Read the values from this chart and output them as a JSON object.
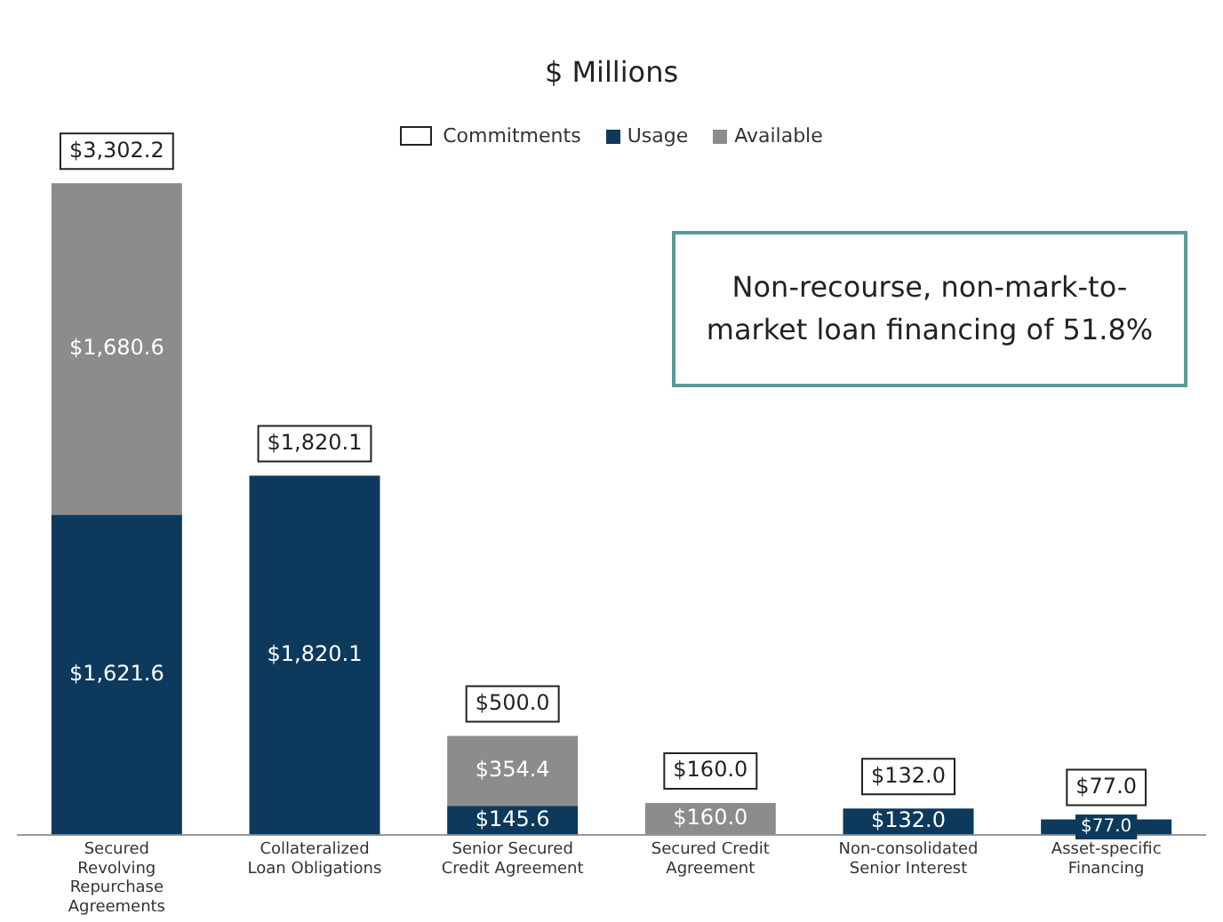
{
  "chart_data": {
    "type": "bar",
    "title": "$ Millions",
    "stacked": true,
    "legend": "top",
    "legend_title": "Commitments",
    "grid": false,
    "tick_labels": "x",
    "categories": [
      "Secured Revolving Repurchase Agreements",
      "Collateralized Loan Obligations",
      "Senior Secured Credit Agreement",
      "Secured Credit Agreement",
      "Non-consolidated Senior Interest",
      "Asset-specific Financing"
    ],
    "series": [
      {
        "name": "Usage",
        "color": "#0d3a5c",
        "values": [
          1621.6,
          1820.1,
          145.6,
          null,
          132.0,
          77.0
        ],
        "value_labels": [
          "$1,621.6",
          "$1,820.1",
          "$145.6",
          null,
          "$132.0",
          "$77.0"
        ]
      },
      {
        "name": "Available",
        "color": "#8c8c8c",
        "values": [
          1680.6,
          null,
          354.4,
          160.0,
          null,
          null
        ],
        "value_labels": [
          "$1,680.6",
          null,
          "$354.4",
          "$160.0",
          null,
          null
        ]
      }
    ],
    "totals": [
      "$3,302.2",
      "$1,820.1",
      "$500.0",
      "$160.0",
      "$132.0",
      "$77.0"
    ],
    "annotations": [
      "Non-recourse, non-mark-to-market loan financing of 51.8%"
    ]
  }
}
